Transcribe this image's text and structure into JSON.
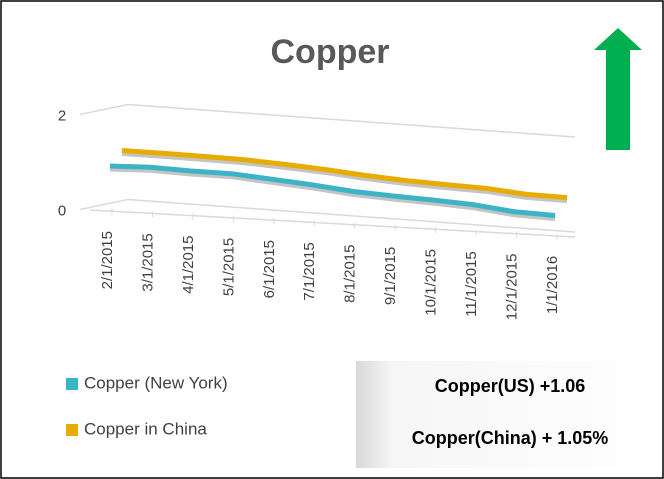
{
  "chart_data": {
    "type": "line",
    "title": "Copper",
    "categories": [
      "2/1/2015",
      "3/1/2015",
      "4/1/2015",
      "5/1/2015",
      "6/1/2015",
      "7/1/2015",
      "8/1/2015",
      "9/1/2015",
      "10/1/2015",
      "11/1/2015",
      "12/1/2015",
      "1/1/2016"
    ],
    "series": [
      {
        "name": "Copper (New York)",
        "color": "#3cb4c8",
        "values": [
          0.95,
          0.97,
          0.94,
          0.93,
          0.86,
          0.79,
          0.7,
          0.65,
          0.61,
          0.56,
          0.46,
          0.43
        ]
      },
      {
        "name": "Copper in China",
        "color": "#e6ad00",
        "values": [
          1.15,
          1.14,
          1.12,
          1.1,
          1.05,
          0.99,
          0.91,
          0.85,
          0.81,
          0.78,
          0.7,
          0.68
        ]
      }
    ],
    "ylim": [
      0,
      2
    ],
    "yticks": [
      0,
      2
    ],
    "grid": true,
    "legend": "bottom-left",
    "annotations": [
      "Copper(US)  +1.06",
      "Copper(China)  + 1.05%"
    ]
  }
}
